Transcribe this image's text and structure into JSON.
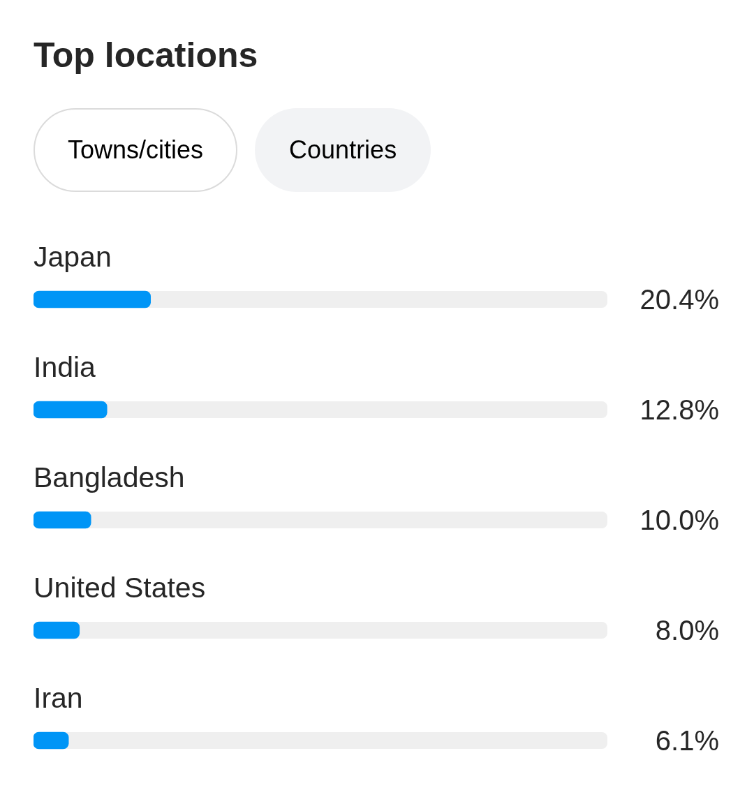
{
  "chart_data": {
    "type": "bar",
    "orientation": "horizontal",
    "title": "Top locations",
    "annotations": [
      "Towns/cities",
      "Countries"
    ],
    "categories": [
      "Japan",
      "India",
      "Bangladesh",
      "United States",
      "Iran"
    ],
    "values": [
      20.4,
      12.8,
      10.0,
      8.0,
      6.1
    ],
    "value_labels": [
      "20.4%",
      "12.8%",
      "10.0%",
      "8.0%",
      "6.1%"
    ],
    "color": "#0095f6",
    "xlim": [
      0,
      100
    ],
    "tick_labels": "y"
  }
}
